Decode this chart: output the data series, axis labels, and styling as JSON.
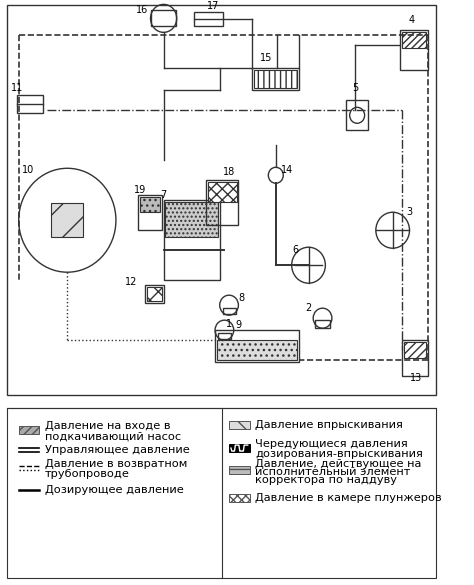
{
  "title": "",
  "bg_color": "#ffffff",
  "legend_items_left": [
    {
      "label": "Давление на входе в\nподкачивающий насос",
      "style": "dense_hatch"
    },
    {
      "label": "Управляющее давление",
      "style": "double_dash"
    },
    {
      "label": "Давление в возвратном\nтрубопроводе",
      "style": "dash_dot"
    },
    {
      "label": "Дозирующее давление",
      "style": "solid"
    }
  ],
  "legend_items_right": [
    {
      "label": "Давление впрыскивания",
      "style": "sparse_hatch"
    },
    {
      "label": "Чередующиеся давления\nдозирования-впрыскивания",
      "style": "zigzag"
    },
    {
      "label": "Давление, действующее на\nисполнительный элемент\nкорректора по наддуву",
      "style": "medium_hatch"
    },
    {
      "label": "Давление в камере плунжеров",
      "style": "cross_hatch"
    }
  ],
  "diagram_color": "#333333",
  "text_color": "#000000",
  "font_size": 8.5,
  "legend_font_size": 8.2
}
